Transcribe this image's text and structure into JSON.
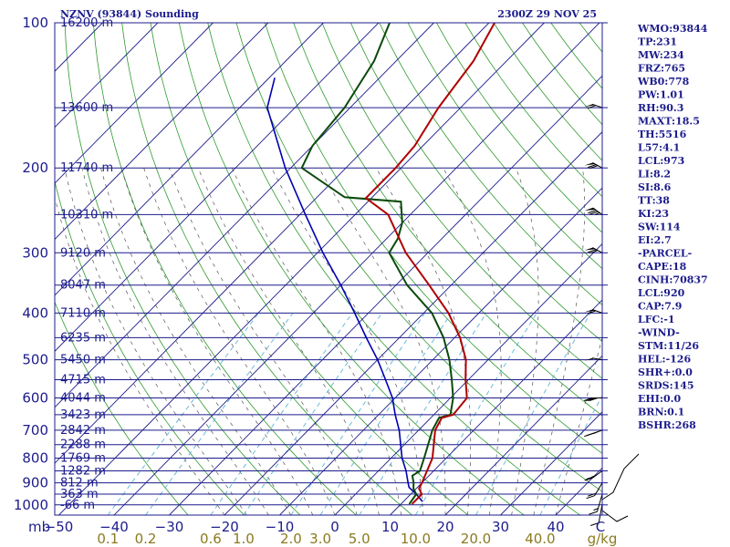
{
  "header": {
    "station": "NZNV (93844) Sounding",
    "time": "2300Z 29 NOV 25"
  },
  "indices": [
    "WMO:93844",
    "TP:231",
    "MW:234",
    "FRZ:765",
    "WB0:778",
    "PW:1.01",
    "RH:90.3",
    "MAXT:18.5",
    "TH:5516",
    "L57:4.1",
    "LCL:973",
    "LI:8.2",
    "SI:8.6",
    "TT:38",
    "KI:23",
    "SW:114",
    "EI:2.7",
    "-PARCEL-",
    "CAPE:18",
    "CINH:70837",
    "LCL:920",
    "CAP:7.9",
    "LFC:-1",
    "-WIND-",
    "STM:11/26",
    "HEL:-126",
    "SHR+:0.0",
    "SRDS:145",
    "EHI:0.0",
    "BRN:0.1",
    "BSHR:268"
  ],
  "colors": {
    "isobar": "#1c1c8c",
    "isotherm": "#1c1c8c",
    "dry_adiabat": "#2e9a2e",
    "mixing_ratio": "#5ab4d8",
    "moist_adiabat": "#555555",
    "temperature": "#b00000",
    "dewpoint": "#0a4a0a",
    "parcel": "#0000b0",
    "mixing_label": "#8c7a1e"
  },
  "chart_data": {
    "type": "skew-t",
    "x_unit_label": "C",
    "y_unit_label": "mb",
    "mixing_unit_label": "g/kg",
    "pressure_range": [
      1050,
      100
    ],
    "pressure_labels": [
      100,
      200,
      300,
      400,
      500,
      600,
      700,
      800,
      900,
      1000
    ],
    "temperature_ticks": [
      -50,
      -40,
      -30,
      -20,
      -10,
      0,
      10,
      20,
      30,
      40
    ],
    "mixing_ratio_labels": [
      {
        "label": "0.1",
        "value": 0.1
      },
      {
        "label": "0.2",
        "value": 0.2
      },
      {
        "label": "0.6",
        "value": 0.6
      },
      {
        "label": "1.0",
        "value": 1.0
      },
      {
        "label": "2.0",
        "value": 2.0
      },
      {
        "label": "3.0",
        "value": 3.0
      },
      {
        "label": "5.0",
        "value": 5.0
      },
      {
        "label": "10.0",
        "value": 10.0
      },
      {
        "label": "20.0",
        "value": 20.0
      },
      {
        "label": "40.0",
        "value": 40.0
      }
    ],
    "height_labels": [
      {
        "p": 100,
        "text": "16200 m"
      },
      {
        "p": 150,
        "text": "13600 m"
      },
      {
        "p": 200,
        "text": "11740 m"
      },
      {
        "p": 250,
        "text": "10310 m"
      },
      {
        "p": 300,
        "text": "9120 m"
      },
      {
        "p": 350,
        "text": "8047 m"
      },
      {
        "p": 400,
        "text": "7110 m"
      },
      {
        "p": 450,
        "text": "6235 m"
      },
      {
        "p": 500,
        "text": "5450 m"
      },
      {
        "p": 550,
        "text": "4715 m"
      },
      {
        "p": 600,
        "text": "4044 m"
      },
      {
        "p": 650,
        "text": "3423 m"
      },
      {
        "p": 700,
        "text": "2842 m"
      },
      {
        "p": 750,
        "text": "2288 m"
      },
      {
        "p": 800,
        "text": "1769 m"
      },
      {
        "p": 850,
        "text": "1282 m"
      },
      {
        "p": 900,
        "text": "812 m"
      },
      {
        "p": 950,
        "text": "363 m"
      },
      {
        "p": 1000,
        "text": "-66 m"
      }
    ],
    "temperature_profile": [
      {
        "p": 996,
        "t": 12.0
      },
      {
        "p": 975,
        "t": 12.0
      },
      {
        "p": 950,
        "t": 12.0
      },
      {
        "p": 925,
        "t": 10.5
      },
      {
        "p": 900,
        "t": 10.0
      },
      {
        "p": 850,
        "t": 8.8
      },
      {
        "p": 800,
        "t": 7.5
      },
      {
        "p": 700,
        "t": 3.0
      },
      {
        "p": 660,
        "t": 2.0
      },
      {
        "p": 650,
        "t": 3.5
      },
      {
        "p": 600,
        "t": 3.0
      },
      {
        "p": 550,
        "t": -0.5
      },
      {
        "p": 500,
        "t": -4.0
      },
      {
        "p": 450,
        "t": -9.0
      },
      {
        "p": 400,
        "t": -15.5
      },
      {
        "p": 350,
        "t": -24.0
      },
      {
        "p": 300,
        "t": -34.0
      },
      {
        "p": 250,
        "t": -44.0
      },
      {
        "p": 231,
        "t": -51.0
      },
      {
        "p": 200,
        "t": -51.0
      },
      {
        "p": 180,
        "t": -51.5
      },
      {
        "p": 150,
        "t": -54.0
      },
      {
        "p": 120,
        "t": -56.0
      },
      {
        "p": 100,
        "t": -59.0
      }
    ],
    "dewpoint_profile": [
      {
        "p": 996,
        "t": 11.5
      },
      {
        "p": 950,
        "t": 11.0
      },
      {
        "p": 925,
        "t": 9.5
      },
      {
        "p": 900,
        "t": 8.5
      },
      {
        "p": 870,
        "t": 7.0
      },
      {
        "p": 850,
        "t": 7.5
      },
      {
        "p": 800,
        "t": 6.0
      },
      {
        "p": 700,
        "t": 2.5
      },
      {
        "p": 660,
        "t": 1.5
      },
      {
        "p": 650,
        "t": 3.0
      },
      {
        "p": 600,
        "t": 0.5
      },
      {
        "p": 550,
        "t": -3.0
      },
      {
        "p": 500,
        "t": -7.0
      },
      {
        "p": 450,
        "t": -12.0
      },
      {
        "p": 400,
        "t": -18.5
      },
      {
        "p": 350,
        "t": -28.0
      },
      {
        "p": 300,
        "t": -37.0
      },
      {
        "p": 280,
        "t": -38.0
      },
      {
        "p": 260,
        "t": -40.0
      },
      {
        "p": 235,
        "t": -44.0
      },
      {
        "p": 230,
        "t": -55.0
      },
      {
        "p": 200,
        "t": -68.0
      },
      {
        "p": 180,
        "t": -70.0
      },
      {
        "p": 150,
        "t": -71.0
      },
      {
        "p": 120,
        "t": -74.0
      },
      {
        "p": 100,
        "t": -78.0
      }
    ],
    "parcel_profile": [
      {
        "p": 985,
        "t": 13.5
      },
      {
        "p": 950,
        "t": 11.0
      },
      {
        "p": 920,
        "t": 8.5
      },
      {
        "p": 900,
        "t": 7.5
      },
      {
        "p": 850,
        "t": 5.0
      },
      {
        "p": 800,
        "t": 2.0
      },
      {
        "p": 700,
        "t": -3.5
      },
      {
        "p": 650,
        "t": -7.0
      },
      {
        "p": 600,
        "t": -10.5
      },
      {
        "p": 550,
        "t": -15.0
      },
      {
        "p": 500,
        "t": -20.0
      },
      {
        "p": 450,
        "t": -26.0
      },
      {
        "p": 400,
        "t": -32.5
      },
      {
        "p": 350,
        "t": -40.0
      },
      {
        "p": 300,
        "t": -49.0
      },
      {
        "p": 250,
        "t": -59.0
      },
      {
        "p": 200,
        "t": -71.0
      },
      {
        "p": 150,
        "t": -85.0
      },
      {
        "p": 130,
        "t": -89.0
      }
    ],
    "winds": [
      {
        "p": 996,
        "dir": 200,
        "spd": 10
      },
      {
        "p": 950,
        "dir": 210,
        "spd": 15
      },
      {
        "p": 900,
        "dir": 230,
        "spd": 20
      },
      {
        "p": 850,
        "dir": 250,
        "spd": 25
      },
      {
        "p": 700,
        "dir": 260,
        "spd": 35
      },
      {
        "p": 600,
        "dir": 270,
        "spd": 40
      },
      {
        "p": 500,
        "dir": 275,
        "spd": 50
      },
      {
        "p": 400,
        "dir": 280,
        "spd": 60
      },
      {
        "p": 300,
        "dir": 285,
        "spd": 70
      },
      {
        "p": 250,
        "dir": 290,
        "spd": 75
      },
      {
        "p": 200,
        "dir": 285,
        "spd": 70
      },
      {
        "p": 150,
        "dir": 280,
        "spd": 60
      }
    ]
  }
}
